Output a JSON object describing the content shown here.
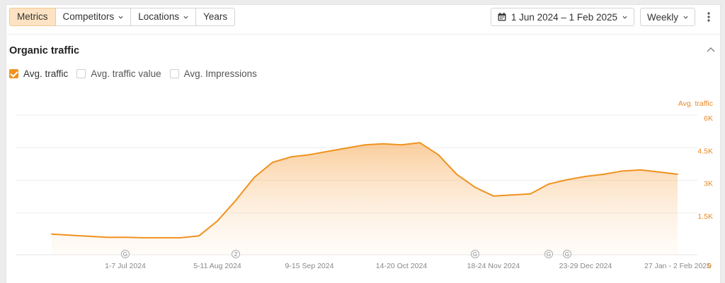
{
  "toolbar": {
    "tabs": [
      {
        "label": "Metrics",
        "active": true,
        "dropdown": false
      },
      {
        "label": "Competitors",
        "active": false,
        "dropdown": true
      },
      {
        "label": "Locations",
        "active": false,
        "dropdown": true
      },
      {
        "label": "Years",
        "active": false,
        "dropdown": false
      }
    ],
    "date_range": "1 Jun 2024 – 1 Feb 2025",
    "granularity": "Weekly"
  },
  "section": {
    "title": "Organic traffic"
  },
  "legend": [
    {
      "label": "Avg. traffic",
      "checked": true
    },
    {
      "label": "Avg. traffic value",
      "checked": false
    },
    {
      "label": "Avg. Impressions",
      "checked": false
    }
  ],
  "colors": {
    "accent": "#f0921f",
    "active_tab_bg": "#fde3c3",
    "axis_text": "#e8892a"
  },
  "chart_data": {
    "type": "area",
    "ylabel": "Avg. traffic",
    "ylim": [
      0,
      6000
    ],
    "y_ticks": [
      {
        "value": 1500,
        "label": "1.5K"
      },
      {
        "value": 3000,
        "label": "3K"
      },
      {
        "value": 4500,
        "label": "4.5K"
      },
      {
        "value": 6000,
        "label": "6K"
      }
    ],
    "x_tick_labels": [
      {
        "index": 4,
        "label": "1-7 Jul 2024"
      },
      {
        "index": 9,
        "label": "5-11 Aug 2024"
      },
      {
        "index": 14,
        "label": "9-15 Sep 2024"
      },
      {
        "index": 19,
        "label": "14-20 Oct 2024"
      },
      {
        "index": 24,
        "label": "18-24 Nov 2024"
      },
      {
        "index": 29,
        "label": "23-29 Dec 2024"
      },
      {
        "index": 34,
        "label": "27 Jan - 2 Feb 2025"
      }
    ],
    "x_end_label": "0",
    "annotations": [
      {
        "index": 4,
        "label": "G"
      },
      {
        "index": 10,
        "label": "2"
      },
      {
        "index": 23,
        "label": "G"
      },
      {
        "index": 27,
        "label": "G"
      },
      {
        "index": 28,
        "label": "G"
      }
    ],
    "series": [
      {
        "name": "Avg. traffic",
        "values": [
          950,
          900,
          850,
          800,
          800,
          780,
          780,
          780,
          870,
          1550,
          2500,
          3550,
          4250,
          4500,
          4600,
          4750,
          4900,
          5050,
          5100,
          5050,
          5150,
          4600,
          3700,
          3100,
          2700,
          2750,
          2800,
          3250,
          3450,
          3600,
          3700,
          3850,
          3900,
          3800,
          3700
        ]
      }
    ]
  }
}
